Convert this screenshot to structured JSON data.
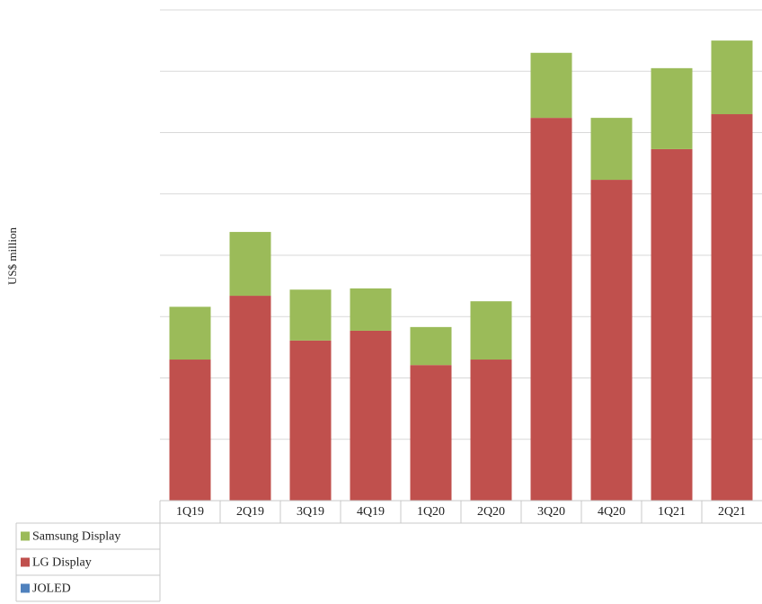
{
  "chart_data": {
    "type": "stacked_bar",
    "ylabel": "US$ million",
    "categories": [
      "1Q19",
      "2Q19",
      "3Q19",
      "4Q19",
      "1Q20",
      "2Q20",
      "3Q20",
      "4Q20",
      "1Q21",
      "2Q21"
    ],
    "series": [
      {
        "name": "JOLED",
        "color": "#4f81bd",
        "values": [
          0,
          0,
          0,
          0,
          0,
          0,
          0,
          0,
          0,
          0
        ]
      },
      {
        "name": "LG Display",
        "color": "#c0504d",
        "values": [
          230,
          334,
          261,
          277,
          221,
          230,
          624,
          523,
          573,
          630
        ]
      },
      {
        "name": "Samsung Display",
        "color": "#9bbb59",
        "values": [
          86,
          104,
          83,
          69,
          62,
          95,
          106,
          101,
          132,
          120
        ]
      }
    ],
    "ylim": [
      0,
      800
    ],
    "yticks": [
      0,
      100,
      200,
      300,
      400,
      500,
      600,
      700,
      800
    ],
    "grid": true
  }
}
